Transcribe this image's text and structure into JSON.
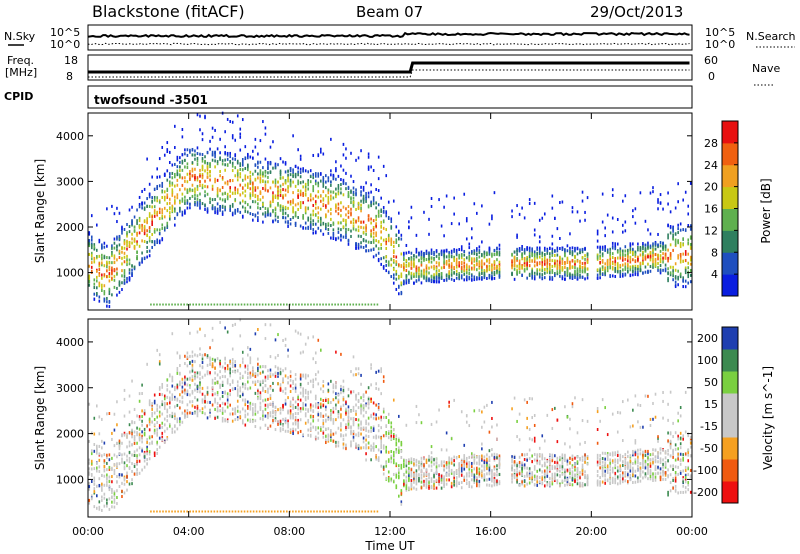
{
  "header": {
    "station": "Blackstone (fitACF)",
    "beam": "Beam 07",
    "date": "29/Oct/2013"
  },
  "top_panels": {
    "nsky_label": "N.Sky",
    "nsearch_label": "N.Search",
    "nsky_ticks": [
      "10^5",
      "10^0"
    ],
    "nsearch_ticks": [
      "10^5",
      "10^0"
    ],
    "freq_label_line1": "Freq.",
    "freq_label_line2": "[MHz]",
    "freq_ticks": [
      "18",
      "8"
    ],
    "nave_label": "Nave",
    "nave_ticks": [
      "60",
      "0"
    ],
    "cpid_label": "CPID",
    "cpid_value": "twofsound -3501"
  },
  "colors": {
    "power_scale": [
      "#0a1ee0",
      "#1f4fbf",
      "#2f7f5f",
      "#5fb04f",
      "#c8c814",
      "#f0a020",
      "#f06010",
      "#e81010"
    ],
    "velocity_scale": [
      "#ee1010",
      "#f05a10",
      "#f5a020",
      "#c8c8c8",
      "#c8c8c8",
      "#7ad040",
      "#3c8a50",
      "#1f3fb0"
    ]
  },
  "chart_data": [
    {
      "type": "heatmap",
      "name": "power-panel",
      "ylabel": "Slant Range [km]",
      "xlabel": "Time UT",
      "x_ticks": [
        "00:00",
        "04:00",
        "08:00",
        "12:00",
        "16:00",
        "20:00",
        "00:00"
      ],
      "x_range_hours": [
        0,
        24
      ],
      "y_range_km": [
        180,
        4500
      ],
      "y_ticks": [
        1000,
        2000,
        3000,
        4000
      ],
      "colorbar_label": "Power [dB]",
      "colorbar_range": [
        0,
        32
      ],
      "colorbar_ticks": [
        4,
        8,
        12,
        16,
        20,
        24,
        28
      ],
      "data_gaps_hours": [
        [
          16.4,
          16.8
        ],
        [
          19.9,
          20.2
        ]
      ],
      "echo_band": [
        {
          "t": 0.0,
          "center_km": 1200
        },
        {
          "t": 0.8,
          "center_km": 900
        },
        {
          "t": 1.6,
          "center_km": 1500
        },
        {
          "t": 4.0,
          "center_km": 3100
        },
        {
          "t": 6.0,
          "center_km": 2900
        },
        {
          "t": 8.0,
          "center_km": 2700
        },
        {
          "t": 10.0,
          "center_km": 2400
        },
        {
          "t": 11.5,
          "center_km": 2000
        },
        {
          "t": 12.5,
          "center_km": 1100
        },
        {
          "t": 16.0,
          "center_km": 1200
        },
        {
          "t": 20.0,
          "center_km": 1200
        },
        {
          "t": 24.0,
          "center_km": 1400
        }
      ]
    },
    {
      "type": "heatmap",
      "name": "velocity-panel",
      "ylabel": "Slant Range [km]",
      "xlabel": "Time UT",
      "x_ticks": [
        "00:00",
        "04:00",
        "08:00",
        "12:00",
        "16:00",
        "20:00",
        "00:00"
      ],
      "x_range_hours": [
        0,
        24
      ],
      "y_range_km": [
        180,
        4500
      ],
      "y_ticks": [
        1000,
        2000,
        3000,
        4000
      ],
      "colorbar_label": "Velocity [m s^-1]",
      "colorbar_ticks": [
        200,
        100,
        50,
        15,
        -15,
        -50,
        -100,
        -200
      ],
      "data_gaps_hours": [
        [
          16.4,
          16.8
        ],
        [
          19.9,
          20.2
        ]
      ]
    }
  ]
}
